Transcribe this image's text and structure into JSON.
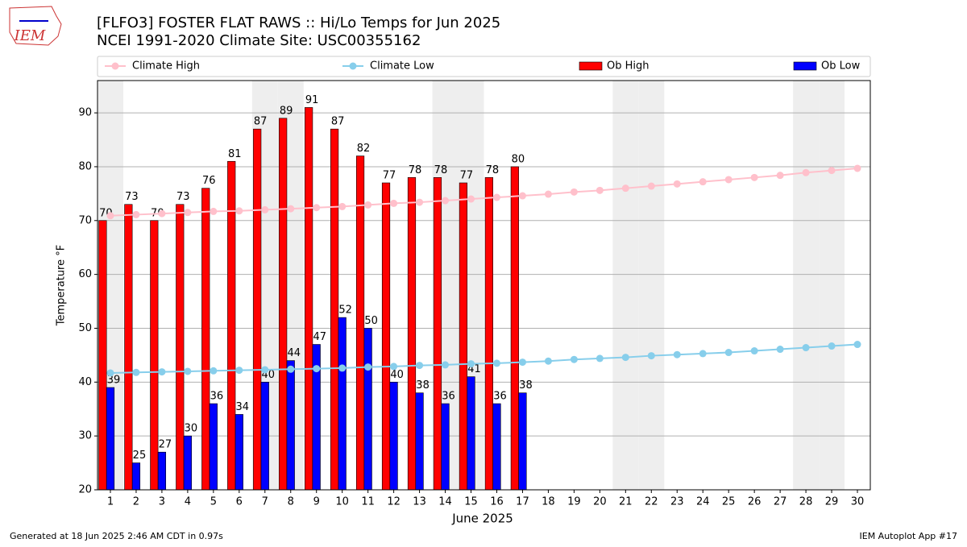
{
  "logo": "IEM",
  "chart_data": {
    "type": "bar",
    "title": "[FLFO3] FOSTER FLAT RAWS :: Hi/Lo Temps for Jun 2025",
    "subtitle": "NCEI 1991-2020 Climate Site: USC00355162",
    "x_label": "June 2025",
    "y_label": "Temperature °F",
    "x": [
      1,
      2,
      3,
      4,
      5,
      6,
      7,
      8,
      9,
      10,
      11,
      12,
      13,
      14,
      15,
      16,
      17,
      18,
      19,
      20,
      21,
      22,
      23,
      24,
      25,
      26,
      27,
      28,
      29,
      30
    ],
    "xlim": [
      0.5,
      30.5
    ],
    "xticks": [
      1,
      2,
      3,
      4,
      5,
      6,
      7,
      8,
      9,
      10,
      11,
      12,
      13,
      14,
      15,
      16,
      17,
      18,
      19,
      20,
      21,
      22,
      23,
      24,
      25,
      26,
      27,
      28,
      29,
      30
    ],
    "ylim": [
      20,
      96
    ],
    "yticks": [
      20,
      30,
      40,
      50,
      60,
      70,
      80,
      90
    ],
    "grid": true,
    "legend": "top",
    "shaded_x": [
      1,
      7,
      8,
      14,
      15,
      21,
      22,
      28,
      29
    ],
    "series": [
      {
        "name": "Climate High",
        "kind": "line",
        "color": "#ffc0cb",
        "values": [
          70.9,
          71.1,
          71.3,
          71.5,
          71.7,
          71.8,
          72.0,
          72.2,
          72.4,
          72.6,
          72.9,
          73.2,
          73.4,
          73.7,
          74.0,
          74.3,
          74.6,
          74.9,
          75.3,
          75.6,
          76.0,
          76.4,
          76.8,
          77.2,
          77.6,
          78.0,
          78.4,
          78.9,
          79.3,
          79.7
        ]
      },
      {
        "name": "Climate Low",
        "kind": "line",
        "color": "#87ceeb",
        "values": [
          41.7,
          41.8,
          41.9,
          42.0,
          42.1,
          42.2,
          42.3,
          42.4,
          42.5,
          42.6,
          42.8,
          42.9,
          43.1,
          43.2,
          43.4,
          43.5,
          43.7,
          43.9,
          44.2,
          44.4,
          44.6,
          44.9,
          45.1,
          45.3,
          45.5,
          45.8,
          46.1,
          46.4,
          46.7,
          47.0
        ]
      },
      {
        "name": "Ob High",
        "kind": "bar",
        "color": "#ff0000",
        "values": [
          70,
          73,
          70,
          73,
          76,
          81,
          87,
          89,
          91,
          87,
          82,
          77,
          78,
          78,
          77,
          78,
          80,
          null,
          null,
          null,
          null,
          null,
          null,
          null,
          null,
          null,
          null,
          null,
          null,
          null
        ]
      },
      {
        "name": "Ob Low",
        "kind": "bar",
        "color": "#0000ff",
        "values": [
          39,
          25,
          27,
          30,
          36,
          34,
          40,
          44,
          47,
          52,
          50,
          40,
          38,
          36,
          41,
          36,
          38,
          null,
          null,
          null,
          null,
          null,
          null,
          null,
          null,
          null,
          null,
          null,
          null,
          null
        ]
      }
    ],
    "footer_left": "Generated at 18 Jun 2025 2:46 AM CDT in 0.97s",
    "footer_right": "IEM Autoplot App #17"
  }
}
